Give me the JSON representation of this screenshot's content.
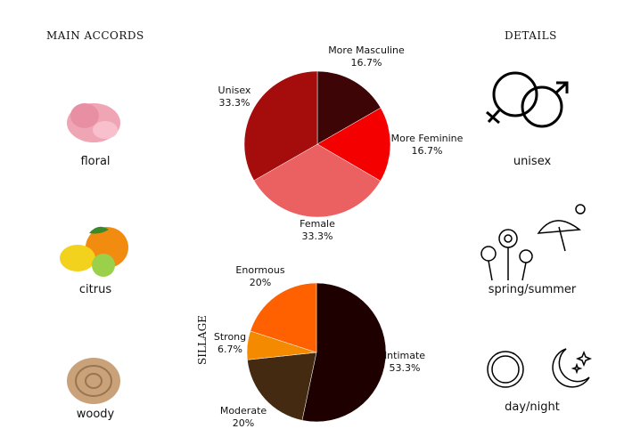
{
  "left": {
    "title": "MAIN ACCORDS",
    "accords": [
      {
        "label": "floral",
        "icon": "carnation-flower-icon"
      },
      {
        "label": "citrus",
        "icon": "lemon-orange-icon"
      },
      {
        "label": "woody",
        "icon": "wood-slice-icon"
      }
    ]
  },
  "right": {
    "title": "DETAILS",
    "items": [
      {
        "label": "unisex",
        "icon": "gender-symbols-icon"
      },
      {
        "label": "spring/summer",
        "icon": "flowers-umbrella-sun-icon"
      },
      {
        "label": "day/night",
        "icon": "sun-moon-icon"
      }
    ]
  },
  "chart_data": [
    {
      "type": "pie",
      "title": "",
      "start": "top",
      "direction": "clockwise",
      "slices": [
        {
          "label": "More Masculine",
          "value": 16.7,
          "text": "16.7%",
          "color": "#3d0505"
        },
        {
          "label": "More Feminine",
          "value": 16.7,
          "text": "16.7%",
          "color": "#f50000"
        },
        {
          "label": "Female",
          "value": 33.3,
          "text": "33.3%",
          "color": "#eb6060"
        },
        {
          "label": "Unisex",
          "value": 33.3,
          "text": "33.3%",
          "color": "#a50c0c"
        }
      ]
    },
    {
      "type": "pie",
      "title": "SILLAGE",
      "start": "top",
      "direction": "clockwise",
      "slices": [
        {
          "label": "Intimate",
          "value": 53.3,
          "text": "53.3%",
          "color": "#1e0000"
        },
        {
          "label": "Moderate",
          "value": 20,
          "text": "20%",
          "color": "#442a10"
        },
        {
          "label": "Strong",
          "value": 6.7,
          "text": "6.7%",
          "color": "#f48a00"
        },
        {
          "label": "Enormous",
          "value": 20,
          "text": "20%",
          "color": "#ff6000"
        }
      ]
    }
  ]
}
